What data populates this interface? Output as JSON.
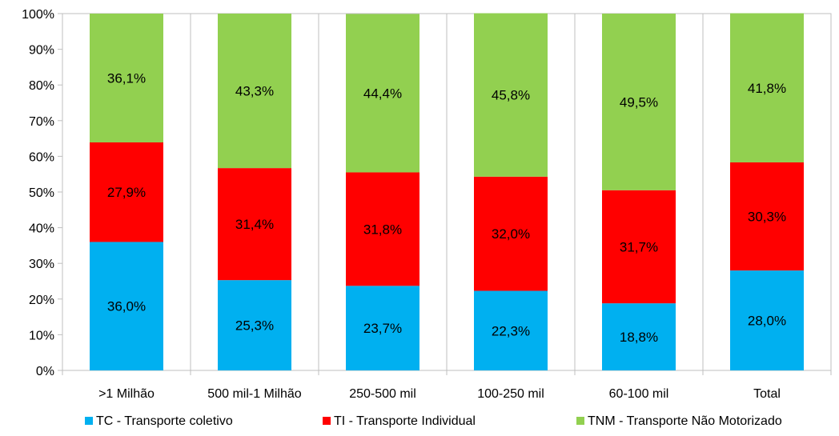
{
  "chart_data": {
    "type": "bar",
    "stacked": true,
    "percent": true,
    "categories": [
      ">1 Milhão",
      "500 mil-1 Milhão",
      "250-500 mil",
      "100-250 mil",
      "60-100 mil",
      "Total"
    ],
    "series": [
      {
        "name": "TC - Transporte coletivo",
        "color": "#00B0F0",
        "values": [
          36.0,
          25.3,
          23.7,
          22.3,
          18.8,
          28.0
        ],
        "labels": [
          "36,0%",
          "25,3%",
          "23,7%",
          "22,3%",
          "18,8%",
          "28,0%"
        ]
      },
      {
        "name": "TI - Transporte Individual",
        "color": "#FF0000",
        "values": [
          27.9,
          31.4,
          31.8,
          32.0,
          31.7,
          30.3
        ],
        "labels": [
          "27,9%",
          "31,4%",
          "31,8%",
          "32,0%",
          "31,7%",
          "30,3%"
        ]
      },
      {
        "name": "TNM - Transporte Não Motorizado",
        "color": "#92D050",
        "values": [
          36.1,
          43.3,
          44.4,
          45.8,
          49.5,
          41.8
        ],
        "labels": [
          "36,1%",
          "43,3%",
          "44,4%",
          "45,8%",
          "49,5%",
          "41,8%"
        ]
      }
    ],
    "yticks": [
      "0%",
      "10%",
      "20%",
      "30%",
      "40%",
      "50%",
      "60%",
      "70%",
      "80%",
      "90%",
      "100%"
    ],
    "ylim": [
      0,
      100
    ],
    "grid": false,
    "legend": "bottom",
    "gridline_color": "#BFBFBF",
    "text_color": "#000000"
  }
}
